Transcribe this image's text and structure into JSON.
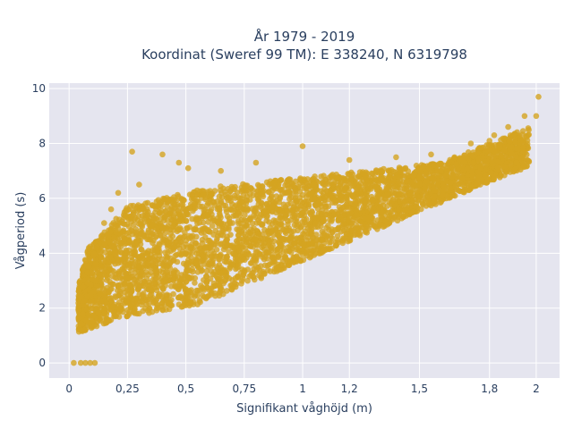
{
  "chart_data": {
    "type": "scatter",
    "title_line1": "År 1979 - 2019",
    "title_line2": "Koordinat (Sweref 99 TM): E 338240, N 6319798",
    "xlabel": "Signifikant våghöjd (m)",
    "ylabel": "Vågperiod (s)",
    "xlim": [
      -0.085,
      2.1
    ],
    "ylim": [
      -0.55,
      10.2
    ],
    "x_ticks": [
      0,
      0.25,
      0.5,
      0.75,
      1,
      1.2,
      1.5,
      1.8,
      2
    ],
    "x_tick_labels": [
      "0",
      "0,25",
      "0,5",
      "0,75",
      "1",
      "1,2",
      "1,5",
      "1,8",
      "2"
    ],
    "y_ticks": [
      0,
      2,
      4,
      6,
      8,
      10
    ],
    "y_tick_labels": [
      "0",
      "2",
      "4",
      "6",
      "8",
      "10"
    ],
    "grid": true,
    "colors": {
      "marker": "#d4a421",
      "plot_bg": "#e5e5ef",
      "grid": "#ffffff",
      "text": "#2a3f5f"
    },
    "series": [
      {
        "points": [
          [
            0.02,
            0.0
          ],
          [
            0.05,
            0.0
          ],
          [
            0.07,
            0.0
          ],
          [
            0.09,
            0.0
          ],
          [
            0.11,
            0.0
          ],
          [
            0.06,
            1.2
          ],
          [
            0.1,
            1.5
          ],
          [
            0.05,
            2.4
          ],
          [
            0.08,
            3.3
          ],
          [
            0.12,
            4.2
          ],
          [
            0.15,
            5.1
          ],
          [
            0.18,
            5.6
          ],
          [
            0.21,
            6.2
          ],
          [
            0.27,
            7.7
          ],
          [
            0.4,
            7.6
          ],
          [
            0.47,
            7.3
          ],
          [
            0.51,
            7.1
          ],
          [
            0.15,
            1.8
          ],
          [
            0.2,
            1.7
          ],
          [
            0.3,
            1.8
          ],
          [
            0.4,
            1.95
          ],
          [
            0.5,
            2.1
          ],
          [
            0.52,
            2.15
          ],
          [
            0.3,
            3.5
          ],
          [
            0.45,
            4.2
          ],
          [
            0.6,
            4.8
          ],
          [
            0.75,
            5.2
          ],
          [
            0.9,
            5.6
          ],
          [
            1.05,
            6.0
          ],
          [
            1.2,
            6.2
          ],
          [
            1.35,
            6.6
          ],
          [
            1.5,
            7.0
          ],
          [
            1.65,
            7.5
          ],
          [
            1.8,
            8.1
          ],
          [
            1.95,
            9.0
          ],
          [
            2.01,
            9.7
          ],
          [
            2.0,
            9.0
          ],
          [
            1.88,
            8.6
          ],
          [
            1.82,
            8.3
          ],
          [
            1.72,
            8.0
          ],
          [
            1.55,
            7.6
          ],
          [
            1.4,
            7.5
          ],
          [
            1.2,
            7.4
          ],
          [
            1.0,
            7.9
          ],
          [
            0.8,
            7.3
          ],
          [
            0.65,
            7.0
          ],
          [
            0.3,
            6.5
          ],
          [
            1.1,
            5.4
          ],
          [
            1.3,
            5.9
          ],
          [
            1.5,
            6.5
          ],
          [
            0.9,
            4.6
          ],
          [
            0.7,
            4.2
          ],
          [
            0.55,
            3.6
          ],
          [
            0.35,
            2.7
          ],
          [
            0.25,
            2.2
          ]
        ]
      }
    ]
  }
}
